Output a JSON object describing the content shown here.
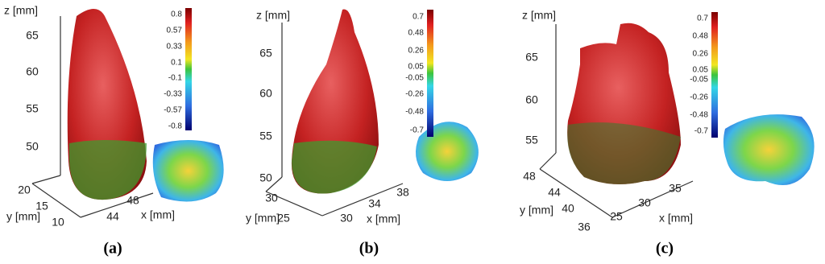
{
  "panels": [
    {
      "caption": "(a)",
      "z_label": "z [mm]",
      "z_ticks": [
        "65",
        "60",
        "55",
        "50"
      ],
      "y_label": "y [mm]",
      "y_ticks": [
        "20",
        "15",
        "10"
      ],
      "x_label": "x [mm]",
      "x_ticks": [
        "44",
        "48"
      ],
      "colorbar_ticks": [
        "0.8",
        "0.57",
        "0.33",
        "0.1",
        "-0.1",
        "-0.33",
        "-0.57",
        "-0.8"
      ]
    },
    {
      "caption": "(b)",
      "z_label": "z [mm]",
      "z_ticks": [
        "65",
        "60",
        "55",
        "50"
      ],
      "y_label": "y [mm]",
      "y_ticks": [
        "30",
        "25"
      ],
      "x_label": "x [mm]",
      "x_ticks": [
        "30",
        "34",
        "38"
      ],
      "colorbar_ticks": [
        "0.7",
        "0.48",
        "0.26",
        "0.05",
        "-0.05",
        "-0.26",
        "-0.48",
        "-0.7"
      ]
    },
    {
      "caption": "(c)",
      "z_label": "z [mm]",
      "z_ticks": [
        "65",
        "60",
        "55"
      ],
      "y_label": "y [mm]",
      "y_ticks": [
        "48",
        "44",
        "40",
        "36"
      ],
      "x_label": "x [mm]",
      "x_ticks": [
        "25",
        "30",
        "35"
      ],
      "colorbar_ticks": [
        "0.7",
        "0.48",
        "0.26",
        "0.05",
        "-0.05",
        "-0.26",
        "-0.48",
        "-0.7"
      ]
    }
  ]
}
